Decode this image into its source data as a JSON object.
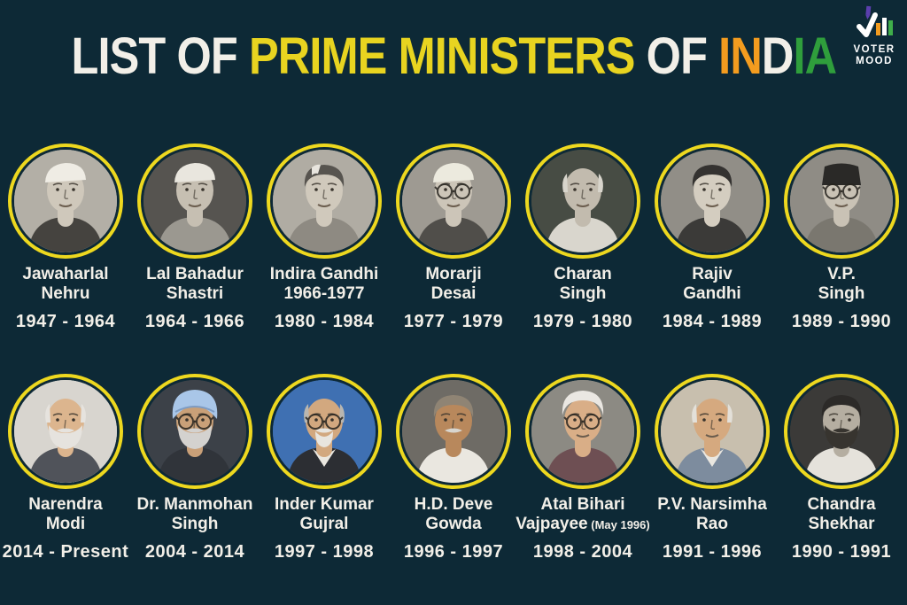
{
  "colors": {
    "background": "#0d2936",
    "ring": "#edd81f",
    "text": "#f2efe8",
    "title_white": "#f2efe8",
    "title_yellow": "#e8d420",
    "title_saffron": "#f39c1f",
    "title_green": "#2f9e3c"
  },
  "title": {
    "full_text": "LIST OF PRIME MINISTERS OF INDIA",
    "segments": [
      {
        "text": "LIST OF ",
        "color": "#f2efe8"
      },
      {
        "text": "PRIME MINISTERS",
        "color": "#e8d420"
      },
      {
        "text": " OF ",
        "color": "#f2efe8"
      },
      {
        "text": "IN",
        "color": "#f39c1f"
      },
      {
        "text": "D",
        "color": "#f2efe8"
      },
      {
        "text": "IA",
        "color": "#2f9e3c"
      }
    ]
  },
  "logo": {
    "name": "VOTER MOOD",
    "line1": "VOTER",
    "line2": "MOOD",
    "icon": {
      "pencil_color": "#5b3fae",
      "tick_color": "#ffffff",
      "bar_colors": [
        "#f39c1f",
        "#ffffff",
        "#3fae4a"
      ]
    }
  },
  "rows": [
    {
      "items": [
        {
          "name_lines": [
            "Jawaharlal",
            "Nehru"
          ],
          "name_note": "",
          "tenure": "1947 - 1964",
          "avatar": {
            "bg": "#b3afa6",
            "suit": "#45433f",
            "skin": "#cfc8bb",
            "hat": "cap",
            "hat_color": "#efece4",
            "glasses": false,
            "beard": "",
            "beard_style": "",
            "mustache": "",
            "collar": "",
            "streak": ""
          }
        },
        {
          "name_lines": [
            "Lal Bahadur",
            "Shastri"
          ],
          "name_note": "",
          "tenure": "1964 - 1966",
          "avatar": {
            "bg": "#565450",
            "suit": "#9b9890",
            "skin": "#c6bfb2",
            "hat": "cap",
            "hat_color": "#e9e6de",
            "glasses": false,
            "beard": "",
            "beard_style": "",
            "mustache": "",
            "collar": "",
            "streak": ""
          }
        },
        {
          "name_lines": [
            "Indira Gandhi",
            "1966-1977"
          ],
          "name_note": "",
          "tenure": "1980 - 1984",
          "avatar": {
            "bg": "#b0aca3",
            "suit": "#8e8a82",
            "skin": "#d0c9bc",
            "hat": "hair",
            "hat_color": "#57544f",
            "glasses": false,
            "beard": "",
            "beard_style": "",
            "mustache": "",
            "collar": "",
            "streak": "#e8e5de"
          }
        },
        {
          "name_lines": [
            "Morarji",
            "Desai"
          ],
          "name_note": "",
          "tenure": "1977 - 1979",
          "avatar": {
            "bg": "#9e9a92",
            "suit": "#504e4a",
            "skin": "#ccc5b8",
            "hat": "cap",
            "hat_color": "#eceade",
            "glasses": true,
            "beard": "",
            "beard_style": "",
            "mustache": "",
            "collar": "",
            "streak": ""
          }
        },
        {
          "name_lines": [
            "Charan",
            "Singh"
          ],
          "name_note": "",
          "tenure": "1979 - 1980",
          "avatar": {
            "bg": "#474c44",
            "suit": "#d9d6cd",
            "skin": "#c2bbae",
            "hat": "bald",
            "hat_color": "#d8d5cc",
            "glasses": false,
            "beard": "",
            "beard_style": "",
            "mustache": "",
            "collar": "",
            "streak": ""
          }
        },
        {
          "name_lines": [
            "Rajiv",
            "Gandhi"
          ],
          "name_note": "",
          "tenure": "1984 - 1989",
          "avatar": {
            "bg": "#918e87",
            "suit": "#3b3a38",
            "skin": "#d4cdc0",
            "hat": "hair",
            "hat_color": "#343230",
            "glasses": false,
            "beard": "",
            "beard_style": "",
            "mustache": "",
            "collar": "",
            "streak": ""
          }
        },
        {
          "name_lines": [
            "V.P.",
            "Singh"
          ],
          "name_note": "",
          "tenure": "1989 - 1990",
          "avatar": {
            "bg": "#8f8c85",
            "suit": "#7a776f",
            "skin": "#c9c2b5",
            "hat": "fur",
            "hat_color": "#2a2927",
            "glasses": true,
            "beard": "",
            "beard_style": "",
            "mustache": "",
            "collar": "",
            "streak": ""
          }
        }
      ]
    },
    {
      "items": [
        {
          "name_lines": [
            "Narendra",
            "Modi"
          ],
          "name_note": "",
          "tenure": "2014 - Present",
          "avatar": {
            "bg": "#d8d5cf",
            "suit": "#50535a",
            "skin": "#dcb58e",
            "hat": "bald",
            "hat_color": "#e6e3de",
            "glasses": false,
            "beard": "#e6e3de",
            "beard_style": "full",
            "mustache": "#e6e3de",
            "collar": "",
            "streak": ""
          }
        },
        {
          "name_lines": [
            "Dr. Manmohan",
            "Singh"
          ],
          "name_note": "",
          "tenure": "2004 - 2014",
          "avatar": {
            "bg": "#3c4148",
            "suit": "#30343a",
            "skin": "#c9a078",
            "hat": "turban",
            "hat_color": "#a9c6e8",
            "glasses": true,
            "beard": "#d4d2cf",
            "beard_style": "full",
            "mustache": "#d4d2cf",
            "collar": "",
            "streak": ""
          }
        },
        {
          "name_lines": [
            "Inder Kumar",
            "Gujral"
          ],
          "name_note": "",
          "tenure": "1997 - 1998",
          "avatar": {
            "bg": "#3f70b2",
            "suit": "#2c2e33",
            "skin": "#d2a87f",
            "hat": "bald",
            "hat_color": "#b9b6b0",
            "glasses": true,
            "beard": "#e8e5df",
            "beard_style": "goatee",
            "mustache": "#e8e5df",
            "collar": "#eae7e0",
            "streak": ""
          }
        },
        {
          "name_lines": [
            "H.D. Deve",
            "Gowda"
          ],
          "name_note": "",
          "tenure": "1996 - 1997",
          "avatar": {
            "bg": "#6e6b65",
            "suit": "#eae7e0",
            "skin": "#b8885c",
            "hat": "hair",
            "hat_color": "#8f8474",
            "glasses": false,
            "beard": "",
            "beard_style": "",
            "mustache": "#d8d5ce",
            "collar": "",
            "streak": ""
          }
        },
        {
          "name_lines": [
            "Atal Bihari",
            "Vajpayee"
          ],
          "name_note": "(May 1996)",
          "tenure": "1998 - 2004",
          "avatar": {
            "bg": "#8c8a83",
            "suit": "#6e4f53",
            "skin": "#d9ae87",
            "hat": "swept",
            "hat_color": "#eae7e2",
            "glasses": true,
            "beard": "",
            "beard_style": "",
            "mustache": "",
            "collar": "",
            "streak": ""
          }
        },
        {
          "name_lines": [
            "P.V. Narsimha",
            "Rao"
          ],
          "name_note": "",
          "tenure": "1991 - 1996",
          "avatar": {
            "bg": "#c8bfae",
            "suit": "#7d8c9e",
            "skin": "#d5a97f",
            "hat": "bald",
            "hat_color": "#e3e0d9",
            "glasses": false,
            "beard": "",
            "beard_style": "",
            "mustache": "",
            "collar": "#eae7e0",
            "streak": ""
          }
        },
        {
          "name_lines": [
            "Chandra",
            "Shekhar"
          ],
          "name_note": "",
          "tenure": "1990 - 1991",
          "avatar": {
            "bg": "#3b3a38",
            "suit": "#e5e2db",
            "skin": "#b5aea1",
            "hat": "hair",
            "hat_color": "#2c2a28",
            "glasses": false,
            "beard": "#37342f",
            "beard_style": "full",
            "mustache": "#37342f",
            "collar": "",
            "streak": ""
          }
        }
      ]
    }
  ]
}
